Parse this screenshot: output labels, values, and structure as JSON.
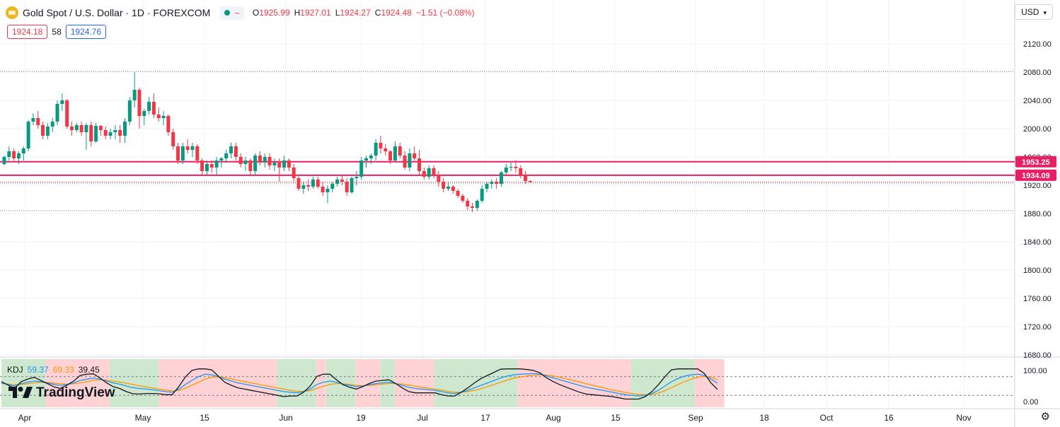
{
  "header": {
    "symbol_title": "Gold Spot / U.S. Dollar · 1D · FOREXCOM",
    "status_icon": "~",
    "ohlc": {
      "o_label": "O",
      "o": "1925.99",
      "h_label": "H",
      "h": "1927.01",
      "l_label": "L",
      "l": "1924.27",
      "c_label": "C",
      "c": "1924.48"
    },
    "change": "−1.51 (−0.08%)"
  },
  "prices": {
    "sell": "1924.18",
    "spread": "58",
    "buy": "1924.76"
  },
  "currency": {
    "label": "USD",
    "icon": "chevron-down-icon"
  },
  "kdj": {
    "name": "KDJ",
    "k": "59.37",
    "d": "69.33",
    "j": "39.45"
  },
  "logo": "TradingView",
  "colors": {
    "up": "#089981",
    "down": "#f23645",
    "hline": "#e91e63",
    "k": "#2196f3",
    "d": "#ff9800",
    "j": "#131722",
    "bg_bull": "#c8e6c9",
    "bg_bear": "#ffcdd2"
  },
  "chart_data": {
    "type": "candlestick",
    "y_ticks": [
      "2120.00",
      "2080.00",
      "2040.00",
      "2000.00",
      "1960.00",
      "1920.00",
      "1880.00",
      "1840.00",
      "1800.00",
      "1760.00",
      "1720.00",
      "1680.00"
    ],
    "ylim": [
      1670,
      2140
    ],
    "x_ticks": [
      "Apr",
      "May",
      "15",
      "Jun",
      "19",
      "Jul",
      "17",
      "Aug",
      "15",
      "Sep",
      "18",
      "Oct",
      "16",
      "Nov"
    ],
    "horizontal_lines": [
      {
        "label": "1953.25",
        "value": 1953.25
      },
      {
        "label": "1934.09",
        "value": 1934.09
      }
    ],
    "dotted_levels": [
      2081,
      1923,
      1884
    ],
    "candles": [
      [
        1950,
        1962,
        1948,
        1960
      ],
      [
        1960,
        1975,
        1955,
        1968
      ],
      [
        1968,
        1972,
        1955,
        1958
      ],
      [
        1958,
        1968,
        1950,
        1965
      ],
      [
        1965,
        1975,
        1955,
        1972
      ],
      [
        1972,
        2012,
        1968,
        2010
      ],
      [
        2010,
        2022,
        2005,
        2015
      ],
      [
        2015,
        2025,
        2000,
        2005
      ],
      [
        2005,
        2010,
        1985,
        1990
      ],
      [
        1990,
        2008,
        1985,
        2003
      ],
      [
        2003,
        2015,
        1995,
        2010
      ],
      [
        2010,
        2040,
        2005,
        2035
      ],
      [
        2035,
        2050,
        2025,
        2040
      ],
      [
        2040,
        2042,
        2000,
        2003
      ],
      [
        2003,
        2010,
        1990,
        1998
      ],
      [
        1998,
        2008,
        1995,
        2005
      ],
      [
        2005,
        2010,
        1990,
        1995
      ],
      [
        1995,
        2008,
        1970,
        2005
      ],
      [
        2005,
        2010,
        1975,
        1982
      ],
      [
        1982,
        2008,
        1980,
        2004
      ],
      [
        2004,
        2005,
        1990,
        1998
      ],
      [
        1998,
        2003,
        1985,
        1990
      ],
      [
        1990,
        2000,
        1985,
        1995
      ],
      [
        1995,
        2005,
        1985,
        1998
      ],
      [
        1998,
        2005,
        1980,
        1990
      ],
      [
        1990,
        2015,
        1980,
        2010
      ],
      [
        2010,
        2045,
        2005,
        2040
      ],
      [
        2040,
        2080,
        2030,
        2055
      ],
      [
        2055,
        2058,
        2000,
        2018
      ],
      [
        2018,
        2028,
        2005,
        2025
      ],
      [
        2025,
        2045,
        2020,
        2038
      ],
      [
        2038,
        2050,
        2015,
        2020
      ],
      [
        2020,
        2030,
        2010,
        2015
      ],
      [
        2015,
        2025,
        2005,
        2018
      ],
      [
        2018,
        2020,
        1990,
        1995
      ],
      [
        1995,
        2000,
        1970,
        1975
      ],
      [
        1975,
        1980,
        1950,
        1955
      ],
      [
        1955,
        1980,
        1950,
        1975
      ],
      [
        1975,
        1985,
        1965,
        1970
      ],
      [
        1970,
        1980,
        1960,
        1975
      ],
      [
        1975,
        1978,
        1950,
        1955
      ],
      [
        1955,
        1958,
        1935,
        1940
      ],
      [
        1940,
        1955,
        1935,
        1950
      ],
      [
        1950,
        1955,
        1938,
        1945
      ],
      [
        1945,
        1960,
        1935,
        1955
      ],
      [
        1955,
        1960,
        1945,
        1958
      ],
      [
        1958,
        1970,
        1952,
        1965
      ],
      [
        1965,
        1980,
        1958,
        1975
      ],
      [
        1975,
        1980,
        1955,
        1960
      ],
      [
        1960,
        1965,
        1945,
        1950
      ],
      [
        1950,
        1960,
        1940,
        1955
      ],
      [
        1955,
        1958,
        1935,
        1940
      ],
      [
        1940,
        1965,
        1935,
        1962
      ],
      [
        1962,
        1968,
        1948,
        1952
      ],
      [
        1952,
        1965,
        1945,
        1960
      ],
      [
        1960,
        1965,
        1942,
        1948
      ],
      [
        1948,
        1958,
        1940,
        1952
      ],
      [
        1952,
        1958,
        1925,
        1945
      ],
      [
        1945,
        1962,
        1940,
        1955
      ],
      [
        1955,
        1958,
        1940,
        1945
      ],
      [
        1945,
        1950,
        1925,
        1930
      ],
      [
        1930,
        1935,
        1912,
        1915
      ],
      [
        1915,
        1925,
        1908,
        1920
      ],
      [
        1920,
        1928,
        1912,
        1918
      ],
      [
        1918,
        1932,
        1915,
        1928
      ],
      [
        1928,
        1932,
        1915,
        1918
      ],
      [
        1918,
        1925,
        1905,
        1910
      ],
      [
        1910,
        1920,
        1895,
        1915
      ],
      [
        1915,
        1925,
        1910,
        1922
      ],
      [
        1922,
        1932,
        1918,
        1928
      ],
      [
        1928,
        1935,
        1920,
        1925
      ],
      [
        1925,
        1930,
        1905,
        1910
      ],
      [
        1910,
        1932,
        1908,
        1930
      ],
      [
        1930,
        1940,
        1920,
        1932
      ],
      [
        1932,
        1960,
        1928,
        1955
      ],
      [
        1955,
        1962,
        1945,
        1958
      ],
      [
        1958,
        1965,
        1950,
        1962
      ],
      [
        1962,
        1985,
        1955,
        1980
      ],
      [
        1980,
        1990,
        1965,
        1972
      ],
      [
        1972,
        1978,
        1962,
        1968
      ],
      [
        1968,
        1970,
        1950,
        1955
      ],
      [
        1955,
        1982,
        1952,
        1975
      ],
      [
        1975,
        1980,
        1958,
        1962
      ],
      [
        1962,
        1968,
        1942,
        1945
      ],
      [
        1945,
        1972,
        1940,
        1965
      ],
      [
        1965,
        1975,
        1955,
        1958
      ],
      [
        1958,
        1970,
        1935,
        1940
      ],
      [
        1940,
        1945,
        1928,
        1932
      ],
      [
        1932,
        1948,
        1928,
        1944
      ],
      [
        1944,
        1948,
        1930,
        1935
      ],
      [
        1935,
        1940,
        1918,
        1925
      ],
      [
        1925,
        1930,
        1910,
        1915
      ],
      [
        1915,
        1925,
        1912,
        1918
      ],
      [
        1918,
        1920,
        1908,
        1912
      ],
      [
        1912,
        1915,
        1902,
        1905
      ],
      [
        1905,
        1908,
        1895,
        1898
      ],
      [
        1898,
        1902,
        1885,
        1890
      ],
      [
        1890,
        1895,
        1882,
        1888
      ],
      [
        1888,
        1900,
        1884,
        1898
      ],
      [
        1898,
        1920,
        1895,
        1915
      ],
      [
        1915,
        1925,
        1910,
        1922
      ],
      [
        1922,
        1928,
        1915,
        1925
      ],
      [
        1925,
        1930,
        1915,
        1922
      ],
      [
        1922,
        1940,
        1918,
        1938
      ],
      [
        1938,
        1950,
        1935,
        1945
      ],
      [
        1945,
        1952,
        1940,
        1946
      ],
      [
        1946,
        1955,
        1938,
        1944
      ],
      [
        1944,
        1948,
        1930,
        1934
      ],
      [
        1934,
        1940,
        1922,
        1926
      ],
      [
        1926,
        1927,
        1924,
        1924.48
      ]
    ],
    "kdj_series": {
      "k": [
        60,
        55,
        50,
        58,
        62,
        66,
        64,
        60,
        55,
        52,
        55,
        60,
        68,
        72,
        75,
        72,
        66,
        60,
        56,
        50,
        45,
        42,
        40,
        38,
        35,
        32,
        30,
        40,
        55,
        68,
        80,
        88,
        86,
        80,
        72,
        66,
        60,
        56,
        52,
        48,
        44,
        40,
        36,
        32,
        30,
        28,
        32,
        40,
        55,
        62,
        66,
        62,
        56,
        52,
        48,
        50,
        54,
        58,
        60,
        62,
        58,
        52,
        46,
        42,
        40,
        38,
        36,
        32,
        28,
        26,
        30,
        36,
        44,
        52,
        60,
        68,
        76,
        82,
        86,
        88,
        89,
        90,
        88,
        82,
        76,
        70,
        64,
        58,
        52,
        46,
        42,
        38,
        34,
        30,
        26,
        22,
        20,
        18,
        20,
        26,
        36,
        50,
        64,
        74,
        82,
        86,
        88,
        84,
        72,
        59
      ],
      "d": [
        58,
        56,
        54,
        55,
        57,
        60,
        62,
        61,
        59,
        57,
        56,
        57,
        60,
        64,
        68,
        70,
        69,
        66,
        63,
        59,
        55,
        51,
        47,
        44,
        40,
        37,
        34,
        36,
        43,
        52,
        62,
        72,
        78,
        79,
        77,
        73,
        68,
        64,
        60,
        56,
        52,
        48,
        44,
        40,
        36,
        33,
        33,
        35,
        42,
        49,
        55,
        58,
        57,
        55,
        52,
        51,
        52,
        54,
        56,
        58,
        58,
        56,
        53,
        49,
        46,
        43,
        40,
        37,
        33,
        30,
        30,
        32,
        36,
        41,
        48,
        55,
        62,
        69,
        75,
        79,
        82,
        85,
        86,
        85,
        82,
        78,
        73,
        68,
        63,
        57,
        52,
        47,
        42,
        37,
        33,
        29,
        26,
        23,
        22,
        23,
        27,
        35,
        45,
        55,
        64,
        72,
        78,
        81,
        78,
        69
      ]
    },
    "kdj_yticks": [
      "100.00",
      "0.00"
    ],
    "kdj_bg_blocks": [
      {
        "from": 0,
        "to": 9,
        "state": "bull"
      },
      {
        "from": 9,
        "to": 22,
        "state": "bear"
      },
      {
        "from": 22,
        "to": 32,
        "state": "bull"
      },
      {
        "from": 32,
        "to": 56,
        "state": "bear"
      },
      {
        "from": 56,
        "to": 64,
        "state": "bull"
      },
      {
        "from": 64,
        "to": 66,
        "state": "bear"
      },
      {
        "from": 66,
        "to": 72,
        "state": "bull"
      },
      {
        "from": 72,
        "to": 77,
        "state": "bear"
      },
      {
        "from": 77,
        "to": 80,
        "state": "bull"
      },
      {
        "from": 80,
        "to": 88,
        "state": "bear"
      },
      {
        "from": 88,
        "to": 105,
        "state": "bull"
      },
      {
        "from": 105,
        "to": 128,
        "state": "bear"
      },
      {
        "from": 128,
        "to": 141,
        "state": "bull"
      },
      {
        "from": 141,
        "to": 147,
        "state": "bear"
      }
    ]
  }
}
